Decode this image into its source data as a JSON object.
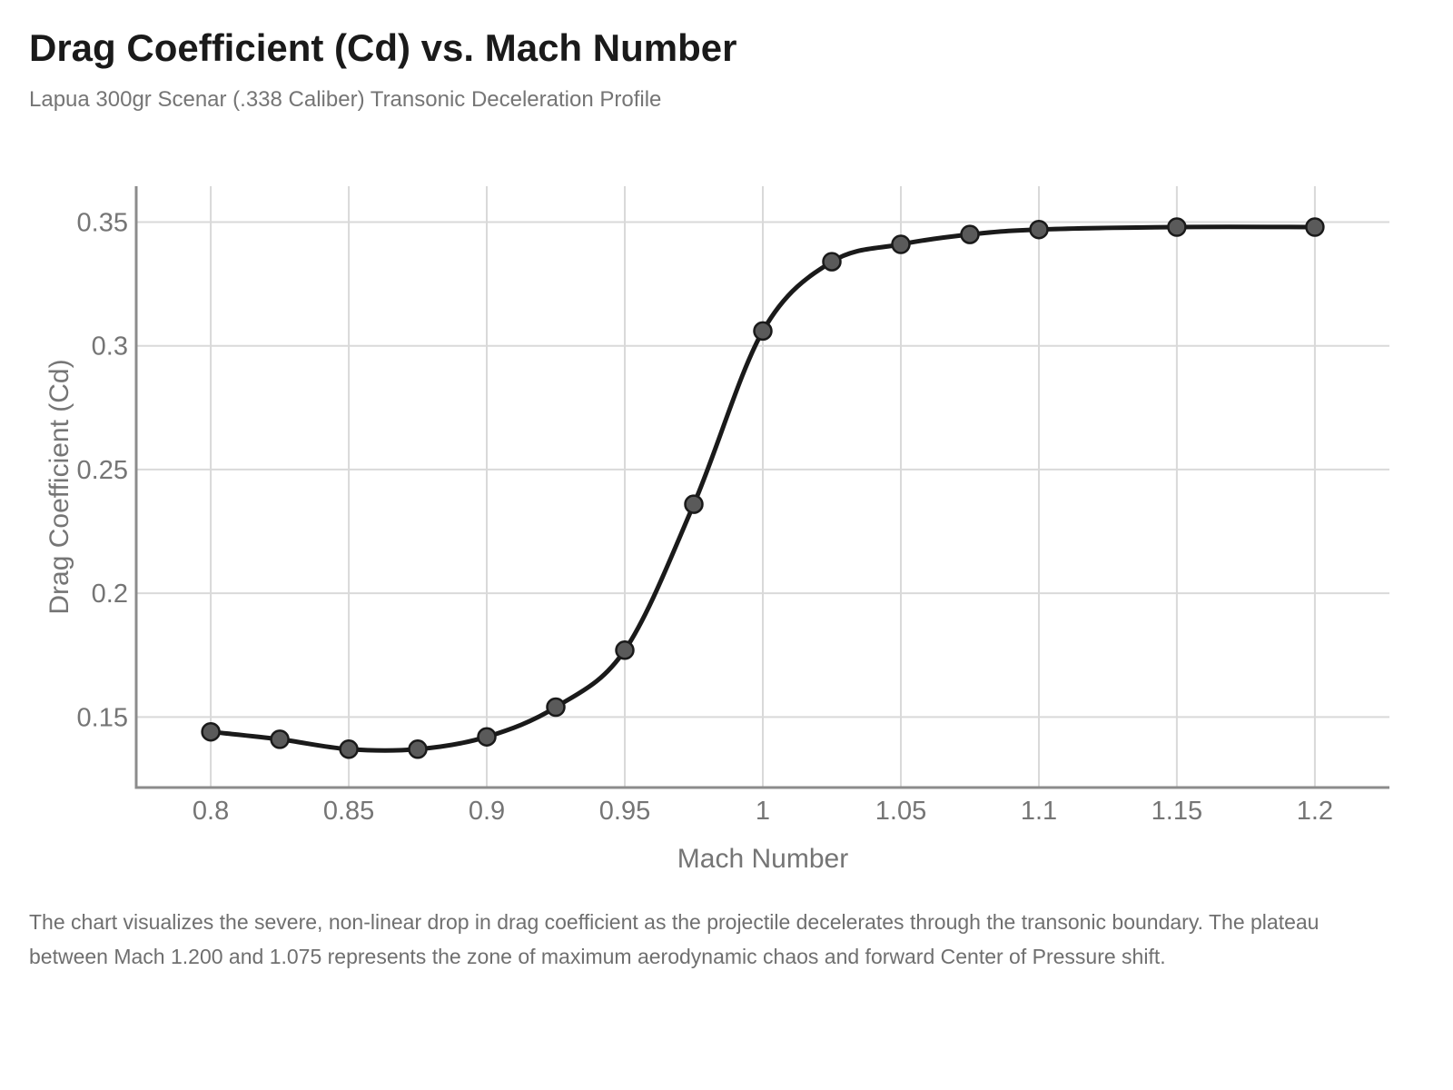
{
  "header": {
    "title": "Drag Coefficient (Cd) vs. Mach Number",
    "subtitle": "Lapua 300gr Scenar (.338 Caliber) Transonic Deceleration Profile"
  },
  "footer": {
    "lines": [
      "The chart visualizes the severe, non-linear drop in drag coefficient as the projectile decelerates through the transonic boundary. The plateau",
      "between Mach 1.200 and 1.075 represents the zone of maximum aerodynamic chaos and forward Center of Pressure shift."
    ]
  },
  "chart_data": {
    "type": "line",
    "title": "Drag Coefficient (Cd) vs. Mach Number",
    "subtitle": "Lapua 300gr Scenar (.338 Caliber) Transonic Deceleration Profile",
    "xlabel": "Mach Number",
    "ylabel": "Drag Coefficient (Cd)",
    "x": [
      0.8,
      0.825,
      0.85,
      0.875,
      0.9,
      0.925,
      0.95,
      0.975,
      1.0,
      1.025,
      1.05,
      1.075,
      1.1,
      1.15,
      1.2
    ],
    "y": [
      0.144,
      0.141,
      0.137,
      0.137,
      0.142,
      0.154,
      0.177,
      0.236,
      0.306,
      0.334,
      0.341,
      0.345,
      0.347,
      0.348,
      0.348
    ],
    "x_ticks": [
      0.8,
      0.85,
      0.9,
      0.95,
      1.0,
      1.05,
      1.1,
      1.15,
      1.2
    ],
    "x_tick_labels": [
      "0.8",
      "0.85",
      "0.9",
      "0.95",
      "1",
      "1.05",
      "1.1",
      "1.15",
      "1.2"
    ],
    "y_ticks": [
      0.15,
      0.2,
      0.25,
      0.3,
      0.35
    ],
    "y_tick_labels": [
      "0.15",
      "0.2",
      "0.25",
      "0.3",
      "0.35"
    ],
    "xlim": [
      0.773,
      1.227
    ],
    "ylim": [
      0.1215,
      0.3645
    ],
    "grid": true,
    "legend": false,
    "line_smoothing": "spline",
    "marker": "circle",
    "colors": {
      "line": "#1a1a1a",
      "marker_fill": "#5a5a5a",
      "marker_stroke": "#1a1a1a",
      "grid": "#d9d9d9",
      "axis": "#8c8c8c",
      "tick_text": "#757575",
      "axis_title_text": "#757575",
      "title_text": "#1a1a1a",
      "subtitle_text": "#757575",
      "footer_text": "#6f6f6f",
      "background": "#ffffff"
    }
  }
}
